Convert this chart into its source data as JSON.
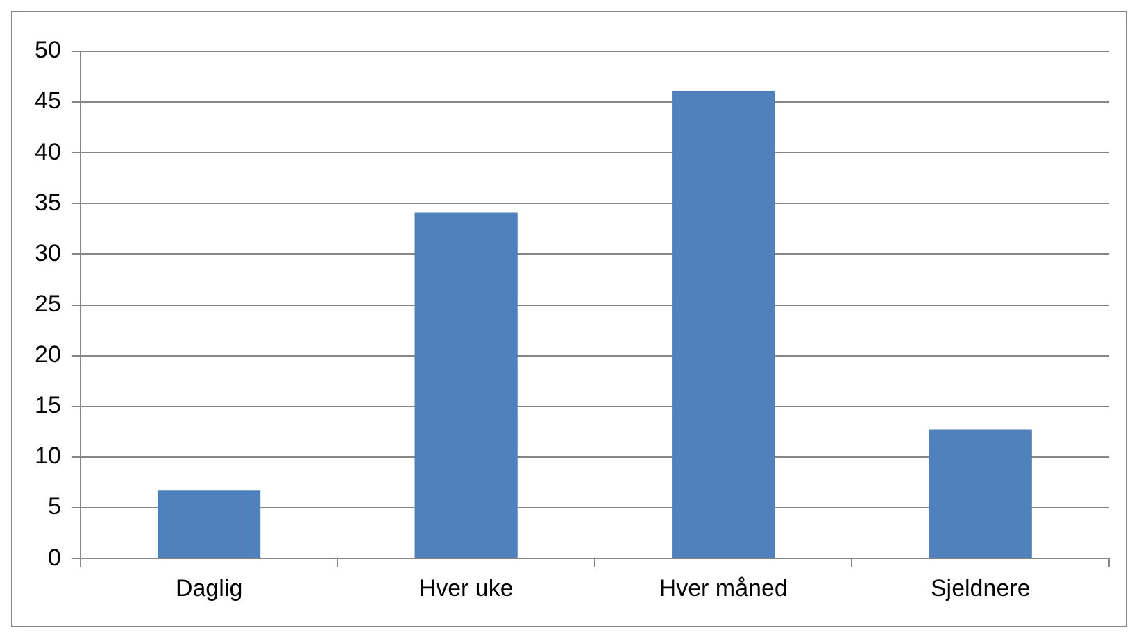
{
  "chart_data": {
    "type": "bar",
    "categories": [
      "Daglig",
      "Hver uke",
      "Hver måned",
      "Sjeldnere"
    ],
    "values": [
      6.7,
      34.1,
      46.1,
      12.7
    ],
    "color": "#4f81bd",
    "ylim": [
      0,
      50
    ],
    "yticks": [
      0,
      5,
      10,
      15,
      20,
      25,
      30,
      35,
      40,
      45,
      50
    ],
    "grid": "y",
    "legend": false
  }
}
